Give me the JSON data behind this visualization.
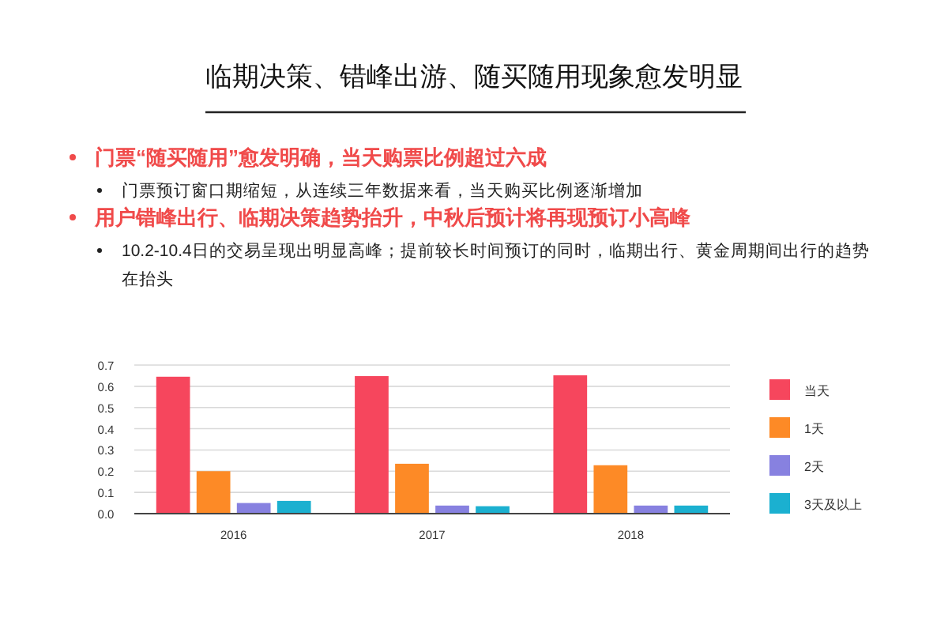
{
  "chart_data": {
    "type": "bar",
    "title": "临期决策、错峰出游、随买随用现象愈发明显",
    "annotations": [
      "门票“随买随用”愈发明确，当天购票比例超过六成",
      "门票预订窗口期缩短，从连续三年数据来看，当天购买比例逐渐增加",
      "用户错峰出行、临期决策趋势抬升，中秋后预计将再现预订小高峰",
      "10.2-10.4日的交易呈现出明显高峰；提前较长时间预订的同时，临期出行、黄金周期间出行的趋势在抬头"
    ],
    "categories": [
      "2016",
      "2017",
      "2018"
    ],
    "series": [
      {
        "name": "当天",
        "color": "#f6465d",
        "values": [
          0.645,
          0.648,
          0.652
        ]
      },
      {
        "name": "1天",
        "color": "#fd8a26",
        "values": [
          0.2,
          0.235,
          0.228
        ]
      },
      {
        "name": "2天",
        "color": "#8781e0",
        "values": [
          0.05,
          0.038,
          0.038
        ]
      },
      {
        "name": "3天及以上",
        "color": "#1bb0d0",
        "values": [
          0.06,
          0.035,
          0.038
        ]
      }
    ],
    "ylim": [
      0,
      0.7
    ],
    "yticks": [
      {
        "value": 0,
        "label": "0.0"
      },
      0.1,
      0.2,
      0.3,
      0.4,
      0.5,
      0.6,
      0.7
    ],
    "grid": "y",
    "legend": "right"
  }
}
